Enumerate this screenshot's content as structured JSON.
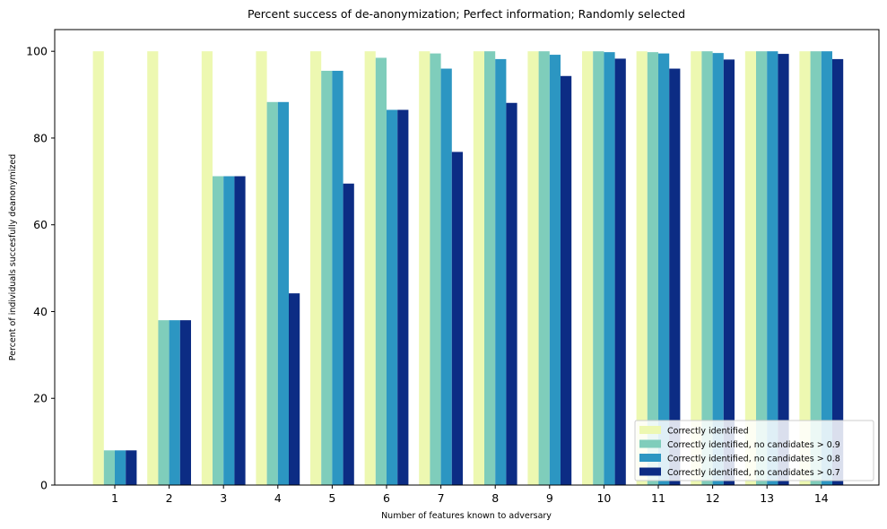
{
  "chart_data": {
    "type": "bar",
    "title": "Percent success of de-anonymization; Perfect information; Randomly selected",
    "xlabel": "Number of features known to adversary",
    "ylabel": "Percent of individuals succesfully deanonymized",
    "categories": [
      "1",
      "2",
      "3",
      "4",
      "5",
      "6",
      "7",
      "8",
      "9",
      "10",
      "11",
      "12",
      "13",
      "14"
    ],
    "ylim": [
      0,
      105
    ],
    "yticks": [
      0,
      20,
      40,
      60,
      80,
      100
    ],
    "grid": false,
    "legend_position": "lower right",
    "series": [
      {
        "name": "Correctly identified",
        "color": "#edf8b1",
        "values": [
          100,
          100,
          100,
          100,
          100,
          100,
          100,
          100,
          100,
          100,
          100,
          100,
          100,
          100
        ]
      },
      {
        "name": "Correctly identified, no candidates > 0.9",
        "color": "#7fcdbb",
        "values": [
          8,
          38,
          71.2,
          88.3,
          95.5,
          98.5,
          99.5,
          100,
          100,
          100,
          99.8,
          100,
          100,
          100
        ]
      },
      {
        "name": "Correctly identified, no candidates > 0.8",
        "color": "#2c96c2",
        "values": [
          8,
          38,
          71.2,
          88.3,
          95.5,
          86.5,
          96,
          98.2,
          99.2,
          99.8,
          99.5,
          99.6,
          100,
          100
        ]
      },
      {
        "name": "Correctly identified, no candidates > 0.7",
        "color": "#0c2c84",
        "values": [
          8,
          38,
          71.2,
          44.2,
          69.5,
          86.5,
          76.8,
          88.1,
          94.3,
          98.3,
          96,
          98.1,
          99.4,
          98.2
        ]
      }
    ]
  }
}
